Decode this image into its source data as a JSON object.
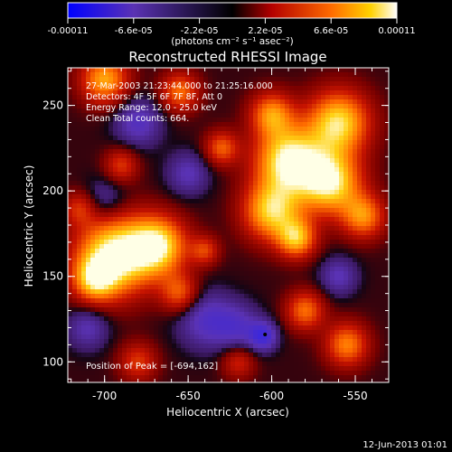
{
  "colorbar": {
    "ticks": [
      "-0.00011",
      "-6.6e-05",
      "-2.2e-05",
      "2.2e-05",
      "6.6e-05",
      "0.00011"
    ],
    "units_label": "(photons cm⁻² s⁻¹ asec⁻²)",
    "colors": [
      "#0000ff",
      "#5a32b4",
      "#2a1240",
      "#b40000",
      "#ff6a00",
      "#ffffff"
    ]
  },
  "chart_data": {
    "type": "heatmap",
    "title": "Reconstructed RHESSI Image",
    "xlabel": "Heliocentric X (arcsec)",
    "ylabel": "Heliocentric Y (arcsec)",
    "xlim": [
      -722,
      -530
    ],
    "ylim": [
      88,
      272
    ],
    "xticks": [
      -700,
      -650,
      -600,
      -550
    ],
    "yticks": [
      100,
      150,
      200,
      250
    ],
    "annotations": [
      "27-Mar-2003 21:23:44.000 to 21:25:16.000",
      "Detectors: 4F 5F 6F 7F 8F, Att 0",
      "Energy Range: 12.0 - 25.0 keV",
      "Clean     Total counts: 664."
    ],
    "peak_label": "Position of Peak = [-694,162]",
    "sources": [
      {
        "x": -694,
        "y": 162,
        "r": 16,
        "amp": 1.0
      },
      {
        "x": -668,
        "y": 168,
        "r": 12,
        "amp": 0.85
      },
      {
        "x": -706,
        "y": 148,
        "r": 9,
        "amp": 0.6
      },
      {
        "x": -655,
        "y": 140,
        "r": 8,
        "amp": 0.5
      },
      {
        "x": -590,
        "y": 218,
        "r": 14,
        "amp": 0.95
      },
      {
        "x": -565,
        "y": 205,
        "r": 13,
        "amp": 0.9
      },
      {
        "x": -600,
        "y": 188,
        "r": 12,
        "amp": 0.8
      },
      {
        "x": -560,
        "y": 240,
        "r": 13,
        "amp": 0.85
      },
      {
        "x": -600,
        "y": 245,
        "r": 9,
        "amp": 0.6
      },
      {
        "x": -585,
        "y": 172,
        "r": 8,
        "amp": 0.7
      },
      {
        "x": -545,
        "y": 185,
        "r": 9,
        "amp": 0.6
      },
      {
        "x": -700,
        "y": 265,
        "r": 10,
        "amp": 0.7
      },
      {
        "x": -655,
        "y": 258,
        "r": 8,
        "amp": 0.55
      },
      {
        "x": -630,
        "y": 225,
        "r": 7,
        "amp": 0.5
      },
      {
        "x": -690,
        "y": 215,
        "r": 7,
        "amp": 0.4
      },
      {
        "x": -580,
        "y": 130,
        "r": 8,
        "amp": 0.55
      },
      {
        "x": -555,
        "y": 110,
        "r": 9,
        "amp": 0.6
      },
      {
        "x": -680,
        "y": 100,
        "r": 8,
        "amp": 0.4
      },
      {
        "x": -620,
        "y": 100,
        "r": 7,
        "amp": 0.35
      },
      {
        "x": -715,
        "y": 190,
        "r": 7,
        "amp": 0.35
      },
      {
        "x": -640,
        "y": 165,
        "r": 6,
        "amp": 0.4
      },
      {
        "x": -680,
        "y": 240,
        "r": 10,
        "amp": -0.35
      },
      {
        "x": -650,
        "y": 210,
        "r": 9,
        "amp": -0.3
      },
      {
        "x": -640,
        "y": 125,
        "r": 12,
        "amp": -0.35
      },
      {
        "x": -620,
        "y": 120,
        "r": 10,
        "amp": -0.3
      },
      {
        "x": -710,
        "y": 120,
        "r": 9,
        "amp": -0.3
      },
      {
        "x": -560,
        "y": 150,
        "r": 8,
        "amp": -0.3
      },
      {
        "x": -700,
        "y": 195,
        "r": 9,
        "amp": -0.25
      },
      {
        "x": -605,
        "y": 115,
        "r": 6,
        "amp": -0.45
      }
    ]
  },
  "footer": {
    "date": "12-Jun-2013 01:01"
  }
}
